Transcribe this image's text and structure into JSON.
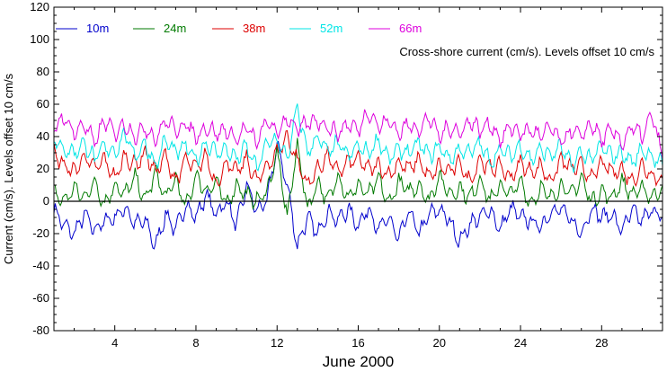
{
  "chart_data": {
    "type": "line",
    "annotation": "Cross-shore current (cm/s). Levels offset 10 cm/s",
    "xlabel": "June 2000",
    "ylabel": "Current (cm/s). Levels offset 10 cm/s",
    "xlim": [
      1,
      31
    ],
    "ylim": [
      -80,
      120
    ],
    "x_ticks": [
      4,
      8,
      12,
      16,
      20,
      24,
      28
    ],
    "y_ticks": [
      -80,
      -60,
      -40,
      -20,
      0,
      20,
      40,
      60,
      80,
      100,
      120
    ],
    "zero_line": 0,
    "grid": false,
    "legend_placement": "top-left",
    "series": [
      {
        "name": "10m",
        "color": "#0000cc",
        "offset": 0,
        "x": [
          1,
          1.5,
          2,
          2.5,
          3,
          3.5,
          4,
          4.5,
          5,
          5.5,
          6,
          6.5,
          7,
          7.5,
          8,
          8.5,
          9,
          9.5,
          10,
          10.5,
          11,
          11.5,
          12,
          12.5,
          13,
          13.5,
          14,
          14.5,
          15,
          15.5,
          16,
          16.5,
          17,
          17.5,
          18,
          18.5,
          19,
          19.5,
          20,
          20.5,
          21,
          21.5,
          22,
          22.5,
          23,
          23.5,
          24,
          24.5,
          25,
          25.5,
          26,
          26.5,
          27,
          27.5,
          28,
          28.5,
          29,
          29.5,
          30,
          30.5,
          31
        ],
        "values": [
          -5,
          -15,
          -20,
          -8,
          -18,
          -12,
          -10,
          -4,
          -14,
          -12,
          -28,
          -8,
          -18,
          -2,
          -10,
          4,
          -8,
          0,
          -15,
          10,
          -6,
          0,
          35,
          10,
          -28,
          -10,
          -20,
          -6,
          -12,
          -5,
          -15,
          -4,
          -18,
          -10,
          -24,
          -6,
          -20,
          -8,
          -5,
          -12,
          -25,
          -14,
          -10,
          -5,
          -18,
          -4,
          -10,
          -12,
          -16,
          -6,
          -5,
          -12,
          -20,
          -4,
          -10,
          -8,
          -18,
          -6,
          -12,
          -5,
          -10
        ]
      },
      {
        "name": "24m",
        "color": "#007a00",
        "offset": 10,
        "x": [
          1,
          1.5,
          2,
          2.5,
          3,
          3.5,
          4,
          4.5,
          5,
          5.5,
          6,
          6.5,
          7,
          7.5,
          8,
          8.5,
          9,
          9.5,
          10,
          10.5,
          11,
          11.5,
          12,
          12.5,
          13,
          13.5,
          14,
          14.5,
          15,
          15.5,
          16,
          16.5,
          17,
          17.5,
          18,
          18.5,
          19,
          19.5,
          20,
          20.5,
          21,
          21.5,
          22,
          22.5,
          23,
          23.5,
          24,
          24.5,
          25,
          25.5,
          26,
          26.5,
          27,
          27.5,
          28,
          28.5,
          29,
          29.5,
          30,
          30.5,
          31
        ],
        "values": [
          5,
          0,
          8,
          2,
          12,
          -2,
          10,
          4,
          15,
          0,
          18,
          2,
          14,
          -4,
          16,
          6,
          12,
          -2,
          10,
          4,
          0,
          6,
          30,
          -10,
          35,
          -5,
          12,
          0,
          16,
          2,
          10,
          4,
          14,
          -2,
          12,
          6,
          10,
          0,
          16,
          4,
          8,
          2,
          14,
          0,
          10,
          4,
          12,
          -2,
          8,
          2,
          10,
          4,
          14,
          0,
          6,
          2,
          12,
          4,
          8,
          2,
          10
        ]
      },
      {
        "name": "38m",
        "color": "#dd0000",
        "offset": 20,
        "x": [
          1,
          1.5,
          2,
          2.5,
          3,
          3.5,
          4,
          4.5,
          5,
          5.5,
          6,
          6.5,
          7,
          7.5,
          8,
          8.5,
          9,
          9.5,
          10,
          10.5,
          11,
          11.5,
          12,
          12.5,
          13,
          13.5,
          14,
          14.5,
          15,
          15.5,
          16,
          16.5,
          17,
          17.5,
          18,
          18.5,
          19,
          19.5,
          20,
          20.5,
          21,
          21.5,
          22,
          22.5,
          23,
          23.5,
          24,
          24.5,
          25,
          25.5,
          26,
          26.5,
          27,
          27.5,
          28,
          28.5,
          29,
          29.5,
          30,
          30.5,
          31
        ],
        "values": [
          30,
          22,
          18,
          28,
          20,
          26,
          14,
          28,
          22,
          30,
          18,
          28,
          12,
          26,
          20,
          28,
          10,
          24,
          18,
          26,
          12,
          22,
          30,
          40,
          25,
          10,
          20,
          28,
          18,
          24,
          26,
          20,
          22,
          16,
          24,
          20,
          26,
          14,
          22,
          18,
          24,
          12,
          26,
          20,
          22,
          14,
          24,
          18,
          22,
          12,
          26,
          20,
          22,
          14,
          24,
          18,
          20,
          12,
          22,
          16,
          14
        ]
      },
      {
        "name": "52m",
        "color": "#00e5e5",
        "offset": 30,
        "x": [
          1,
          1.5,
          2,
          2.5,
          3,
          3.5,
          4,
          4.5,
          5,
          5.5,
          6,
          6.5,
          7,
          7.5,
          8,
          8.5,
          9,
          9.5,
          10,
          10.5,
          11,
          11.5,
          12,
          12.5,
          13,
          13.5,
          14,
          14.5,
          15,
          15.5,
          16,
          16.5,
          17,
          17.5,
          18,
          18.5,
          19,
          19.5,
          20,
          20.5,
          21,
          21.5,
          22,
          22.5,
          23,
          23.5,
          24,
          24.5,
          25,
          25.5,
          26,
          26.5,
          27,
          27.5,
          28,
          28.5,
          29,
          29.5,
          30,
          30.5,
          31
        ],
        "values": [
          38,
          32,
          30,
          36,
          26,
          34,
          30,
          42,
          28,
          36,
          22,
          38,
          30,
          34,
          26,
          36,
          30,
          32,
          26,
          34,
          20,
          36,
          38,
          26,
          58,
          30,
          40,
          30,
          36,
          28,
          34,
          30,
          38,
          26,
          32,
          30,
          36,
          28,
          34,
          26,
          32,
          30,
          36,
          24,
          32,
          28,
          34,
          26,
          32,
          28,
          34,
          22,
          30,
          26,
          34,
          28,
          30,
          24,
          32,
          28,
          22
        ]
      },
      {
        "name": "66m",
        "color": "#dd00dd",
        "offset": 40,
        "x": [
          1,
          1.5,
          2,
          2.5,
          3,
          3.5,
          4,
          4.5,
          5,
          5.5,
          6,
          6.5,
          7,
          7.5,
          8,
          8.5,
          9,
          9.5,
          10,
          10.5,
          11,
          11.5,
          12,
          12.5,
          13,
          13.5,
          14,
          14.5,
          15,
          15.5,
          16,
          16.5,
          17,
          17.5,
          18,
          18.5,
          19,
          19.5,
          20,
          20.5,
          21,
          21.5,
          22,
          22.5,
          23,
          23.5,
          24,
          24.5,
          25,
          25.5,
          26,
          26.5,
          27,
          27.5,
          28,
          28.5,
          29,
          29.5,
          30,
          30.5,
          31
        ],
        "values": [
          45,
          52,
          42,
          48,
          36,
          50,
          42,
          48,
          40,
          46,
          38,
          50,
          44,
          48,
          40,
          46,
          42,
          44,
          38,
          46,
          36,
          50,
          42,
          52,
          44,
          48,
          50,
          46,
          42,
          48,
          44,
          56,
          46,
          50,
          42,
          48,
          44,
          52,
          40,
          46,
          42,
          50,
          44,
          48,
          38,
          46,
          42,
          44,
          40,
          46,
          36,
          44,
          40,
          48,
          38,
          44,
          36,
          46,
          40,
          54,
          26
        ]
      }
    ]
  }
}
